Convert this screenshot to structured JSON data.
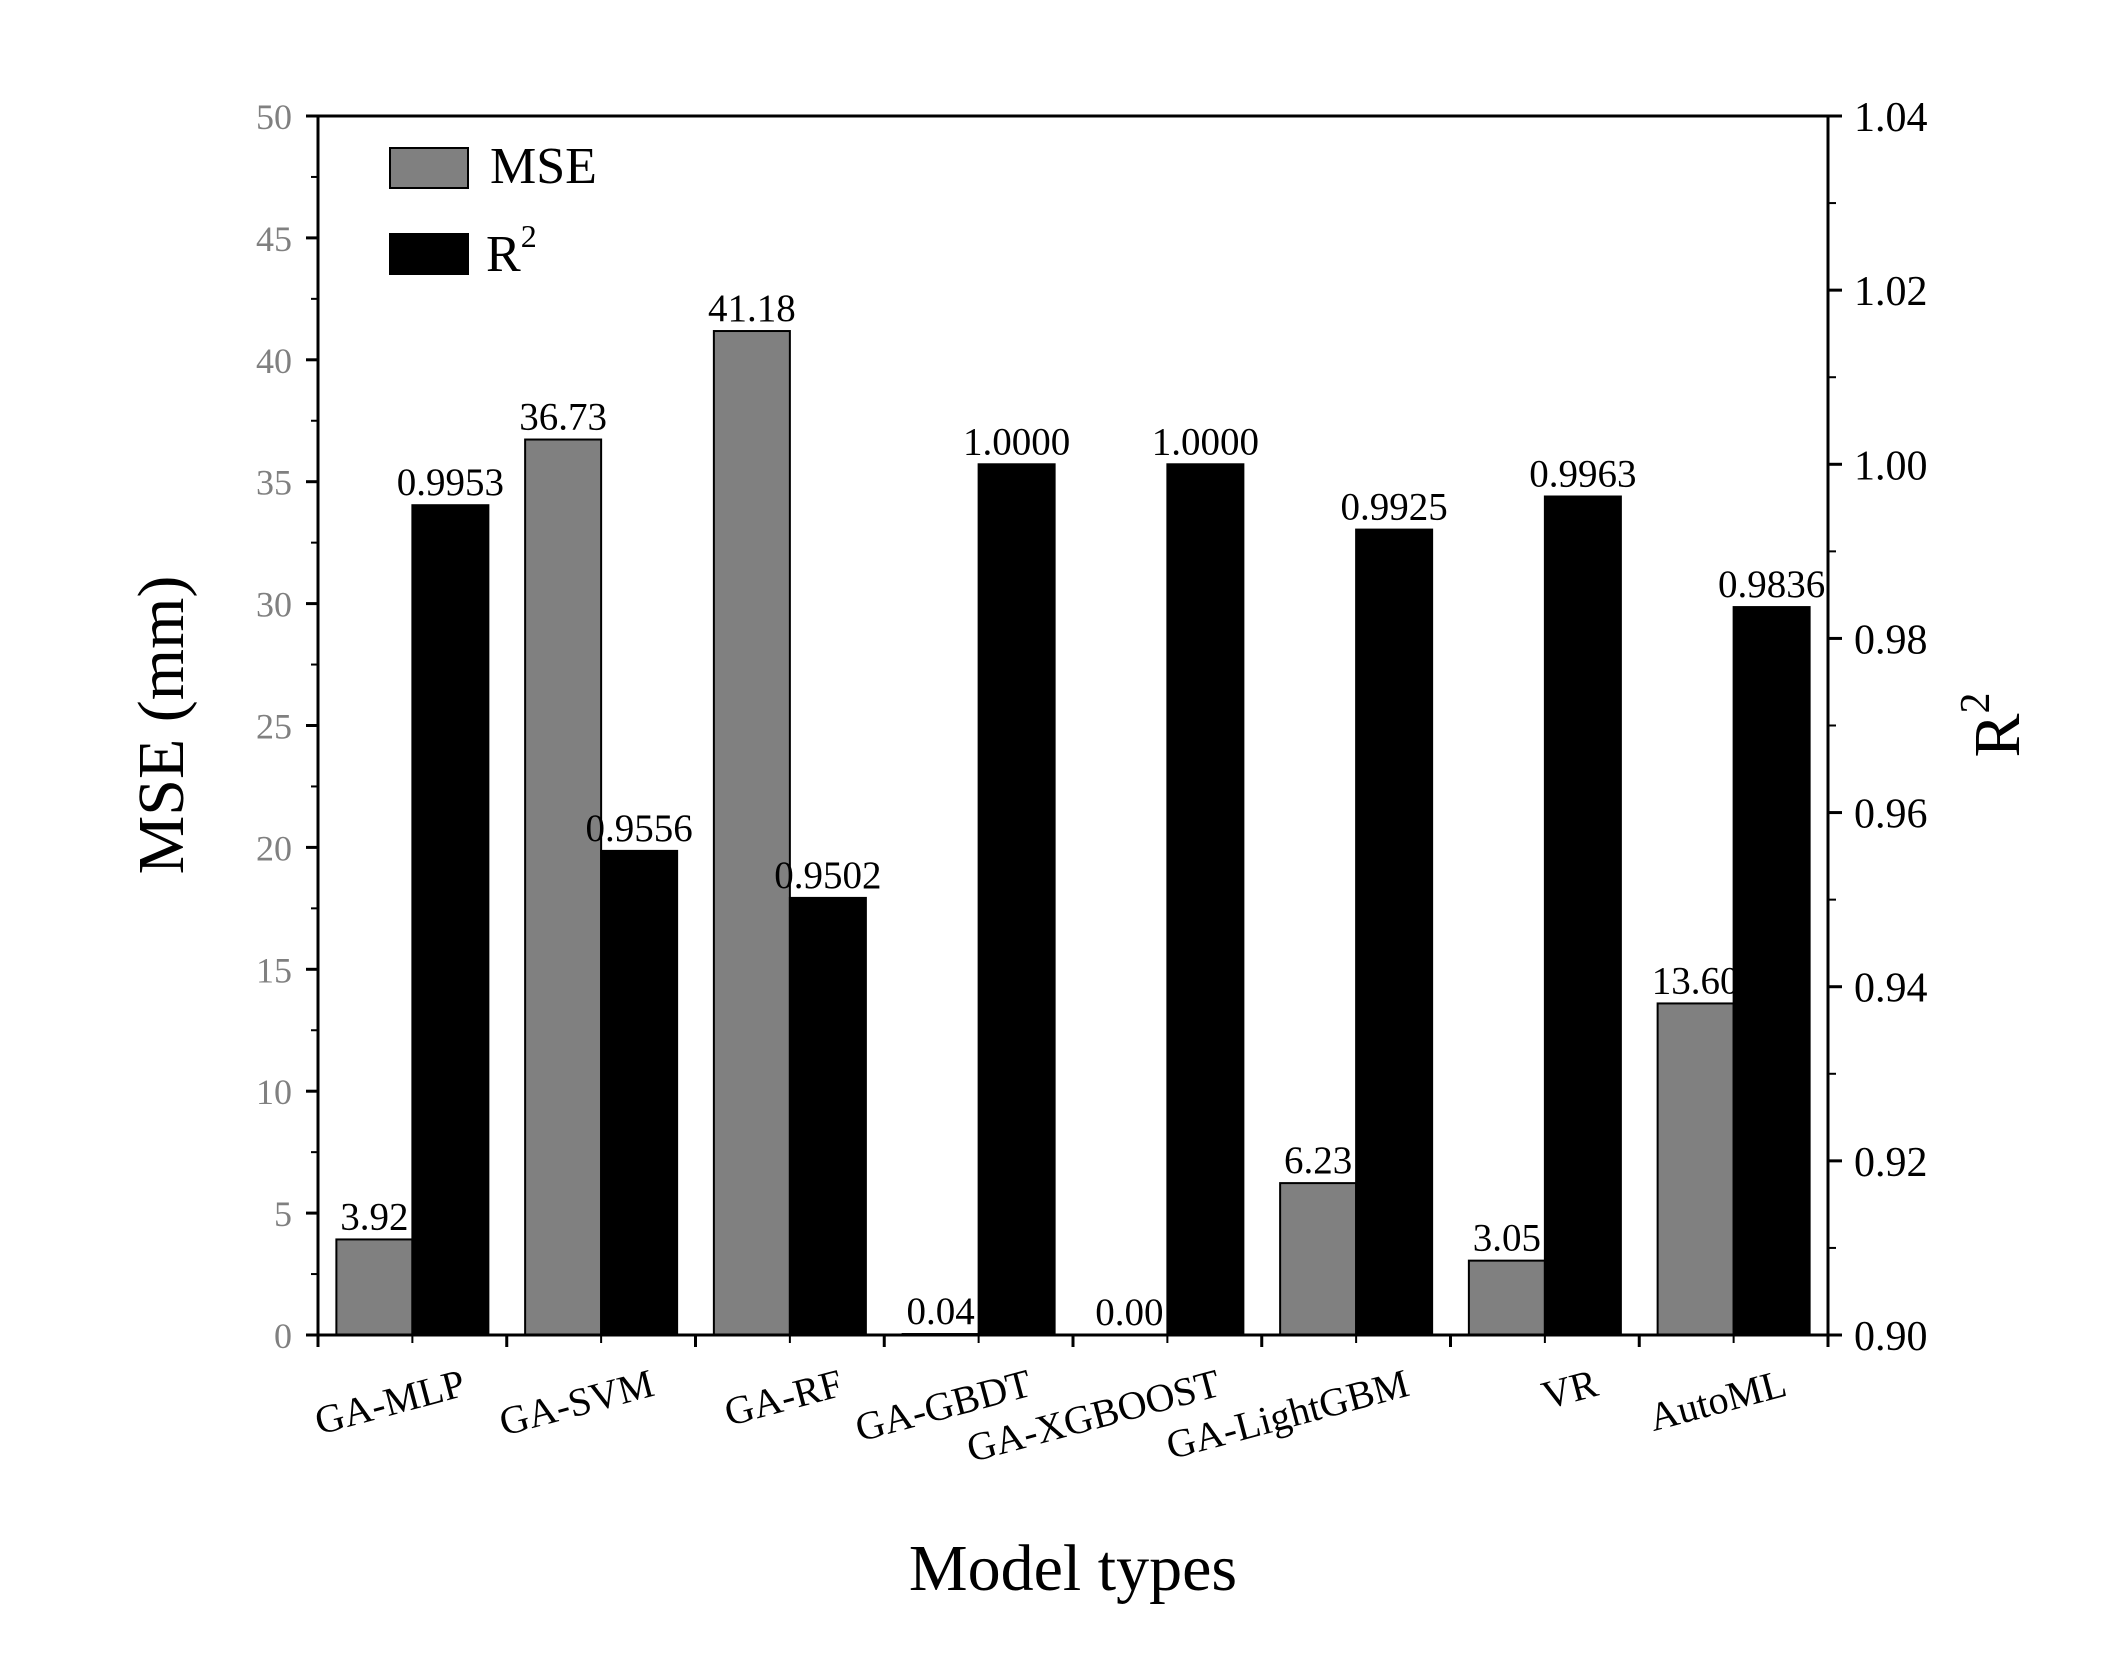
{
  "chart_data": {
    "type": "bar",
    "categories": [
      "GA-MLP",
      "GA-SVM",
      "GA-RF",
      "GA-GBDT",
      "GA-XGBOOST",
      "GA-LightGBM",
      "VR",
      "AutoML"
    ],
    "series": [
      {
        "name": "MSE",
        "axis": "left",
        "color": "#808080",
        "values": [
          3.92,
          36.73,
          41.18,
          0.04,
          0.0,
          6.23,
          3.05,
          13.6
        ],
        "labels": [
          "3.92",
          "36.73",
          "41.18",
          "0.04",
          "0.00",
          "6.23",
          "3.05",
          "13.60"
        ]
      },
      {
        "name": "R",
        "name_sup": "2",
        "axis": "right",
        "color": "#000000",
        "values": [
          0.9953,
          0.9556,
          0.9502,
          1.0,
          1.0,
          0.9925,
          0.9963,
          0.9836
        ],
        "labels": [
          "0.9953",
          "0.9556",
          "0.9502",
          "1.0000",
          "1.0000",
          "0.9925",
          "0.9963",
          "0.9836"
        ]
      }
    ],
    "xlabel": "Model types",
    "ylabel_left": "MSE (mm)",
    "ylabel_right": "R",
    "ylabel_right_sup": "2",
    "ylim_left": [
      0,
      50
    ],
    "yticks_left": [
      "0",
      "5",
      "10",
      "15",
      "20",
      "25",
      "30",
      "35",
      "40",
      "45",
      "50"
    ],
    "ylim_right": [
      0.9,
      1.04
    ],
    "yticks_right": [
      "0.90",
      "0.92",
      "0.94",
      "0.96",
      "0.98",
      "1.00",
      "1.02",
      "1.04"
    ],
    "grid": false,
    "legend_position": "top-left"
  }
}
